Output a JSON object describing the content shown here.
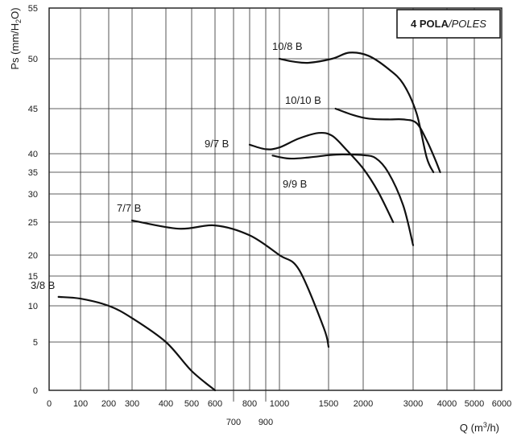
{
  "chart_data": {
    "type": "line",
    "title": "",
    "legend_box": {
      "bold": "4 POLA",
      "italic": "/POLES",
      "placement": "top-right"
    },
    "ylabel": "Ps (mm/H2O)",
    "ylabel_parts": [
      "Ps (mm/H",
      "2",
      "O)"
    ],
    "xlabel": "Q (m³/h)",
    "xlabel_parts": [
      "Q (m",
      "3",
      "/h)"
    ],
    "grid": true,
    "x_scale": "nonlinear (fan-chart scale)",
    "y_scale": "nonlinear (fan-chart scale)",
    "xlim": [
      0,
      6000
    ],
    "ylim": [
      0,
      55
    ],
    "x_ticks": [
      {
        "value": 0,
        "label": "0",
        "row": "top"
      },
      {
        "value": 100,
        "label": "100",
        "row": "top"
      },
      {
        "value": 200,
        "label": "200",
        "row": "top"
      },
      {
        "value": 300,
        "label": "300",
        "row": "top"
      },
      {
        "value": 400,
        "label": "400",
        "row": "top"
      },
      {
        "value": 500,
        "label": "500",
        "row": "top"
      },
      {
        "value": 600,
        "label": "600",
        "row": "top"
      },
      {
        "value": 700,
        "label": "700",
        "row": "bottom"
      },
      {
        "value": 800,
        "label": "800",
        "row": "top"
      },
      {
        "value": 900,
        "label": "900",
        "row": "bottom"
      },
      {
        "value": 1000,
        "label": "1000",
        "row": "top"
      },
      {
        "value": 1500,
        "label": "1500",
        "row": "top"
      },
      {
        "value": 2000,
        "label": "2000",
        "row": "top"
      },
      {
        "value": 3000,
        "label": "3000",
        "row": "top"
      },
      {
        "value": 4000,
        "label": "4000",
        "row": "top"
      },
      {
        "value": 5000,
        "label": "5000",
        "row": "top"
      },
      {
        "value": 6000,
        "label": "6000",
        "row": "top"
      }
    ],
    "y_ticks": [
      {
        "value": 0,
        "label": "0"
      },
      {
        "value": 5,
        "label": "5"
      },
      {
        "value": 10,
        "label": "10"
      },
      {
        "value": 15,
        "label": "15"
      },
      {
        "value": 20,
        "label": "20"
      },
      {
        "value": 25,
        "label": "25"
      },
      {
        "value": 30,
        "label": "30"
      },
      {
        "value": 35,
        "label": "35"
      },
      {
        "value": 40,
        "label": "40"
      },
      {
        "value": 45,
        "label": "45"
      },
      {
        "value": 50,
        "label": "50"
      },
      {
        "value": 55,
        "label": "55"
      }
    ],
    "series": [
      {
        "name": "3/8 B",
        "x": [
          30,
          100,
          200,
          300,
          400,
          500,
          600
        ],
        "y": [
          11.5,
          11.2,
          10.0,
          8.3,
          5.0,
          2.0,
          0
        ]
      },
      {
        "name": "7/7 B",
        "x": [
          300,
          450,
          600,
          800,
          1000,
          1200,
          1450,
          1500
        ],
        "y": [
          25.3,
          24.0,
          24.5,
          23.0,
          20.0,
          16.5,
          7.0,
          4.5
        ]
      },
      {
        "name": "9/7 B",
        "x": [
          800,
          900,
          1000,
          1200,
          1400,
          1550,
          1750,
          2000,
          2300,
          2600
        ],
        "y": [
          41.0,
          40.5,
          40.7,
          41.7,
          42.3,
          42.0,
          40.5,
          36.0,
          30.5,
          25.0
        ]
      },
      {
        "name": "9/9 B",
        "x": [
          950,
          1100,
          1300,
          1500,
          1700,
          2000,
          2250,
          2500,
          2800,
          3000
        ],
        "y": [
          39.5,
          38.7,
          39.0,
          39.6,
          39.8,
          39.6,
          38.8,
          35.0,
          28.0,
          21.5
        ]
      },
      {
        "name": "10/8 B",
        "x": [
          1000,
          1150,
          1300,
          1550,
          1800,
          2100,
          2500,
          2800,
          3100,
          3400,
          3600
        ],
        "y": [
          50.0,
          49.7,
          49.6,
          50.0,
          50.6,
          50.3,
          49.0,
          47.5,
          44.5,
          39.0,
          35.0
        ]
      },
      {
        "name": "10/10 B",
        "x": [
          1600,
          1850,
          2100,
          2500,
          2800,
          3100,
          3400,
          3650,
          3800
        ],
        "y": [
          45.0,
          44.3,
          43.9,
          43.8,
          43.8,
          43.4,
          41.5,
          38.5,
          35.0
        ]
      }
    ]
  }
}
